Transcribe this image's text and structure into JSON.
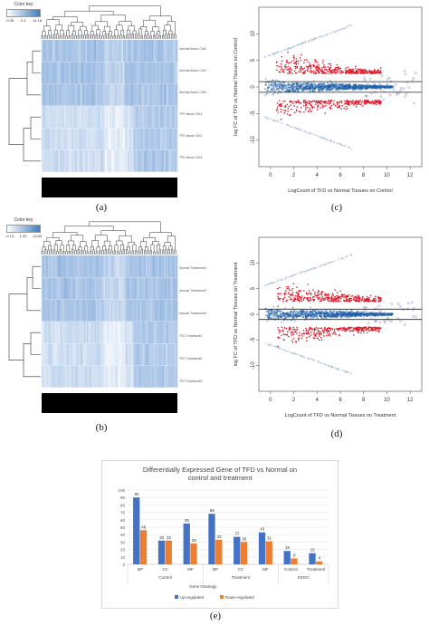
{
  "figure": {
    "panels": [
      {
        "id": "a",
        "label": "(a)"
      },
      {
        "id": "b",
        "label": "(b)"
      },
      {
        "id": "c",
        "label": "(c)"
      },
      {
        "id": "d",
        "label": "(d)"
      },
      {
        "id": "e",
        "label": "(e)"
      }
    ]
  },
  "heatmaps": [
    {
      "color_key_title": "Color key",
      "ticks": [
        "-0.08",
        "0.4",
        "14.18"
      ],
      "row_labels": [
        "Normal tissue Ctrl1",
        "Normal tissue Ctrl2",
        "Normal tissue Ctrl3",
        "TFD tissue Ctrl1",
        "TFD tissue Ctrl2",
        "TFD tissue Ctrl3"
      ]
    },
    {
      "color_key_title": "Color key",
      "ticks": [
        "-0.13",
        "1.90",
        "13.89"
      ],
      "row_labels": [
        "Normal Treatment1",
        "Normal Treatment2",
        "Normal Treatment3",
        "TFD Treatment1",
        "TFD Treatment2",
        "TFD Treatment3"
      ]
    }
  ],
  "chart_data": [
    {
      "type": "scatter",
      "panel": "c",
      "xlabel": "LogCount of TFD vs Normal Tissues on Control",
      "ylabel": "log FC of TFD vs Normal Tissues on Control",
      "xlim": [
        -1,
        13
      ],
      "ylim": [
        -15,
        15
      ],
      "xticks": [
        "0",
        "2",
        "4",
        "6",
        "8",
        "10",
        "12"
      ],
      "yticks": [
        "-10",
        "-5",
        "0",
        "5",
        "10"
      ],
      "threshold_lines": [
        1,
        -1
      ]
    },
    {
      "type": "scatter",
      "panel": "d",
      "xlabel": "LogCount of TFD vs Normal Tissues on Treatment",
      "ylabel": "log FC of TFD vs Normal Tissues on Treatment",
      "xlim": [
        -1,
        13
      ],
      "ylim": [
        -15,
        15
      ],
      "xticks": [
        "0",
        "2",
        "4",
        "6",
        "8",
        "10",
        "12"
      ],
      "yticks": [
        "-10",
        "-5",
        "0",
        "5",
        "10"
      ],
      "threshold_lines": [
        1,
        -1
      ]
    },
    {
      "type": "bar",
      "panel": "e",
      "title": "Differentially Expressed Gene of TFD vs Normal on control and treatment",
      "xlabel": "Gene Ontology",
      "ylim": [
        0,
        100
      ],
      "yticks": [
        "0",
        "10",
        "20",
        "30",
        "40",
        "50",
        "60",
        "70",
        "80",
        "90",
        "100"
      ],
      "categories": [
        "BP",
        "CC",
        "MF",
        "BP",
        "CC",
        "MF",
        "Control",
        "Treatment"
      ],
      "groups": [
        {
          "label": "Control",
          "span": [
            0,
            2
          ]
        },
        {
          "label": "Treatment",
          "span": [
            3,
            5
          ]
        },
        {
          "label": "KEGG",
          "span": [
            6,
            7
          ]
        }
      ],
      "series": [
        {
          "name": "Up-regulated",
          "color": "#4472c4",
          "values": [
            90,
            32,
            55,
            68,
            37,
            43,
            18,
            15
          ]
        },
        {
          "name": "Down-regulated",
          "color": "#ed7d31",
          "values": [
            46,
            32,
            28,
            33,
            30,
            31,
            8,
            4
          ]
        }
      ],
      "legend_position": "bottom"
    }
  ]
}
